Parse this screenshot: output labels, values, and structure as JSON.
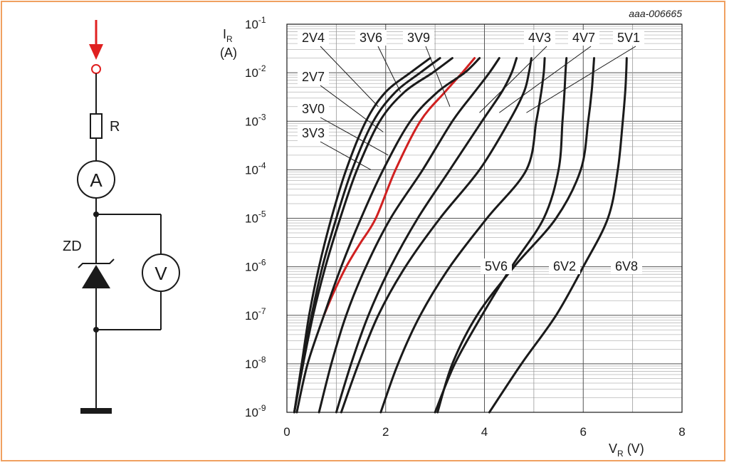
{
  "figure_code": "aaa-006665",
  "circuit": {
    "resistor_label": "R",
    "ammeter_label": "A",
    "voltmeter_label": "V",
    "diode_label": "ZD"
  },
  "chart_data": {
    "type": "line",
    "y_scale": "log",
    "xlabel": "V",
    "xlabel_sub": "R",
    "xlabel_unit": " (V)",
    "ylabel": "I",
    "ylabel_sub": "R",
    "ylabel_unit": "(A)",
    "xlim": [
      0,
      8
    ],
    "ylim": [
      1e-09,
      0.1
    ],
    "x_ticks": [
      {
        "value": 0,
        "label": "0"
      },
      {
        "value": 2,
        "label": "2"
      },
      {
        "value": 4,
        "label": "4"
      },
      {
        "value": 6,
        "label": "6"
      },
      {
        "value": 8,
        "label": "8"
      }
    ],
    "y_ticks": [
      {
        "exp": -1,
        "base": "10",
        "sup": "-1"
      },
      {
        "exp": -2,
        "base": "10",
        "sup": "-2"
      },
      {
        "exp": -3,
        "base": "10",
        "sup": "-3"
      },
      {
        "exp": -4,
        "base": "10",
        "sup": "-4"
      },
      {
        "exp": -5,
        "base": "10",
        "sup": "-5"
      },
      {
        "exp": -6,
        "base": "10",
        "sup": "-6"
      },
      {
        "exp": -7,
        "base": "10",
        "sup": "-7"
      },
      {
        "exp": -8,
        "base": "10",
        "sup": "-8"
      },
      {
        "exp": -9,
        "base": "10",
        "sup": "-9"
      }
    ],
    "grid": true,
    "series": [
      {
        "name": "2V4",
        "color": "#1a1a1a",
        "x": [
          0.15,
          0.3,
          0.45,
          0.65,
          0.9,
          1.2,
          1.6,
          2.0,
          2.5,
          2.9
        ],
        "y": [
          1e-09,
          1e-08,
          1e-07,
          1e-06,
          1e-05,
          0.0001,
          0.001,
          0.004,
          0.01,
          0.02
        ]
      },
      {
        "name": "2V7",
        "color": "#1a1a1a",
        "x": [
          0.15,
          0.32,
          0.5,
          0.72,
          1.0,
          1.32,
          1.75,
          2.2,
          2.7,
          3.1
        ],
        "y": [
          1e-09,
          1e-08,
          1e-07,
          1e-06,
          1e-05,
          0.0001,
          0.001,
          0.004,
          0.01,
          0.02
        ]
      },
      {
        "name": "3V0",
        "color": "#1a1a1a",
        "x": [
          0.15,
          0.33,
          0.53,
          0.78,
          1.08,
          1.42,
          1.88,
          2.38,
          2.95,
          3.35
        ],
        "y": [
          1e-09,
          1e-08,
          1e-07,
          1e-06,
          1e-05,
          0.0001,
          0.001,
          0.004,
          0.01,
          0.02
        ]
      },
      {
        "name": "3V3",
        "color": "#d02020",
        "x": [
          0.75,
          0.95,
          1.2,
          1.48,
          1.8,
          2.2,
          2.7,
          3.2,
          3.55,
          3.8
        ],
        "y": [
          1e-07,
          3e-07,
          1e-06,
          3e-06,
          1e-05,
          0.0001,
          0.001,
          0.004,
          0.01,
          0.02
        ]
      },
      {
        "name": "3V6",
        "color": "#1a1a1a",
        "x": [
          0.2,
          0.42,
          0.75,
          1.1,
          1.5,
          1.95,
          2.5,
          3.05,
          3.6,
          3.9
        ],
        "y": [
          1e-09,
          1e-08,
          1e-07,
          1e-06,
          1e-05,
          0.0001,
          0.001,
          0.004,
          0.01,
          0.02
        ]
      },
      {
        "name": "3V9",
        "color": "#1a1a1a",
        "x": [
          0.65,
          0.9,
          1.2,
          1.6,
          2.1,
          2.75,
          3.35,
          3.8,
          4.1,
          4.3
        ],
        "y": [
          1e-09,
          1e-08,
          1e-07,
          1e-06,
          1e-05,
          0.0001,
          0.001,
          0.004,
          0.01,
          0.02
        ]
      },
      {
        "name": "4V3",
        "color": "#1a1a1a",
        "x": [
          1.0,
          1.3,
          1.65,
          2.1,
          2.65,
          3.3,
          3.95,
          4.35,
          4.55,
          4.65
        ],
        "y": [
          1e-09,
          1e-08,
          1e-07,
          1e-06,
          1e-05,
          0.0001,
          0.001,
          0.004,
          0.01,
          0.02
        ]
      },
      {
        "name": "4V7",
        "color": "#1a1a1a",
        "x": [
          1.1,
          1.45,
          1.85,
          2.4,
          3.1,
          3.9,
          4.5,
          4.8,
          4.9,
          4.95
        ],
        "y": [
          1e-09,
          1e-08,
          1e-07,
          1e-06,
          1e-05,
          0.0001,
          0.001,
          0.004,
          0.01,
          0.02
        ]
      },
      {
        "name": "5V1",
        "color": "#1a1a1a",
        "x": [
          1.9,
          2.25,
          2.7,
          3.3,
          4.05,
          4.85,
          5.05,
          5.15,
          5.2,
          5.22
        ],
        "y": [
          1e-09,
          1e-08,
          1e-07,
          1e-06,
          1e-05,
          0.0001,
          0.001,
          0.004,
          0.01,
          0.02
        ]
      },
      {
        "name": "5V6",
        "color": "#1a1a1a",
        "x": [
          3.0,
          3.4,
          3.95,
          4.55,
          5.2,
          5.5,
          5.58,
          5.62,
          5.64,
          5.66
        ],
        "y": [
          1e-09,
          1e-08,
          1e-07,
          1e-06,
          1e-05,
          0.0001,
          0.001,
          0.004,
          0.01,
          0.02
        ]
      },
      {
        "name": "6V2",
        "color": "#1a1a1a",
        "x": [
          3.05,
          3.35,
          3.85,
          4.6,
          5.45,
          5.95,
          6.1,
          6.17,
          6.2,
          6.22
        ],
        "y": [
          1e-09,
          1e-08,
          1e-07,
          1e-06,
          1e-05,
          0.0001,
          0.001,
          0.004,
          0.01,
          0.02
        ]
      },
      {
        "name": "6V8",
        "color": "#1a1a1a",
        "x": [
          4.1,
          4.75,
          5.45,
          6.0,
          6.5,
          6.7,
          6.8,
          6.85,
          6.87,
          6.88
        ],
        "y": [
          1e-09,
          1e-08,
          1e-07,
          1e-06,
          1e-05,
          0.0001,
          0.001,
          0.004,
          0.01,
          0.02
        ]
      }
    ],
    "annotations": [
      {
        "text": "2V4",
        "series": "2V4"
      },
      {
        "text": "3V6",
        "series": "3V6"
      },
      {
        "text": "3V9",
        "series": "3V9"
      },
      {
        "text": "4V3",
        "series": "4V3"
      },
      {
        "text": "4V7",
        "series": "4V7"
      },
      {
        "text": "5V1",
        "series": "5V1"
      },
      {
        "text": "2V7",
        "series": "2V7"
      },
      {
        "text": "3V0",
        "series": "3V0"
      },
      {
        "text": "3V3",
        "series": "3V3"
      },
      {
        "text": "5V6",
        "series": "5V6"
      },
      {
        "text": "6V2",
        "series": "6V2"
      },
      {
        "text": "6V8",
        "series": "6V8"
      }
    ]
  }
}
